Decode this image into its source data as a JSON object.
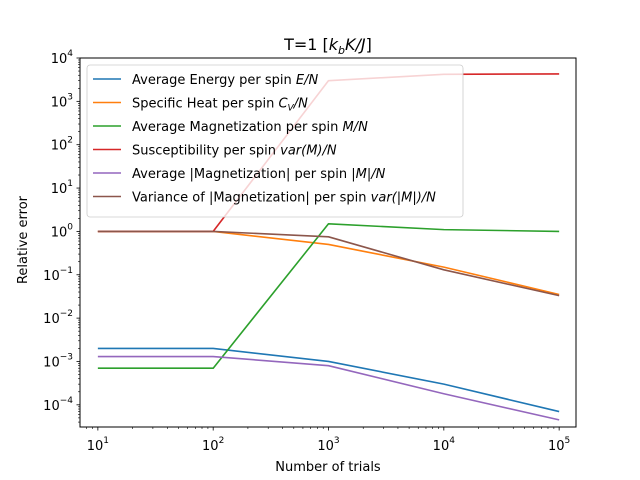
{
  "chart_data": {
    "type": "line",
    "title": "T=1 [k_bK/J]",
    "title_parts": {
      "prefix": "T=1 [",
      "math": "k",
      "math_sub": "b",
      "math2": "K/J",
      "suffix": "]"
    },
    "xlabel": "Number of trials",
    "ylabel": "Relative error",
    "xscale": "log",
    "yscale": "log",
    "xlim": [
      7,
      140000
    ],
    "ylim": [
      3.08e-05,
      10000
    ],
    "x": [
      10,
      100,
      1000,
      10000,
      100000
    ],
    "x_ticks": [
      {
        "value": 10,
        "base": "10",
        "exp": "1"
      },
      {
        "value": 100,
        "base": "10",
        "exp": "2"
      },
      {
        "value": 1000,
        "base": "10",
        "exp": "3"
      },
      {
        "value": 10000,
        "base": "10",
        "exp": "4"
      },
      {
        "value": 100000,
        "base": "10",
        "exp": "5"
      }
    ],
    "y_ticks": [
      {
        "value": 0.0001,
        "base": "10",
        "exp": "−4"
      },
      {
        "value": 0.001,
        "base": "10",
        "exp": "−3"
      },
      {
        "value": 0.01,
        "base": "10",
        "exp": "−2"
      },
      {
        "value": 0.1,
        "base": "10",
        "exp": "−1"
      },
      {
        "value": 1,
        "base": "10",
        "exp": "0"
      },
      {
        "value": 10,
        "base": "10",
        "exp": "1"
      },
      {
        "value": 100,
        "base": "10",
        "exp": "2"
      },
      {
        "value": 1000,
        "base": "10",
        "exp": "3"
      },
      {
        "value": 10000,
        "base": "10",
        "exp": "4"
      }
    ],
    "grid": false,
    "legend_position": "upper-left",
    "series": [
      {
        "name": "Average Energy per spin E/N",
        "legend_text": "Average Energy per spin ",
        "legend_math": "E/N",
        "legend_suffix": "",
        "color": "#1f77b4",
        "values": [
          0.002,
          0.002,
          0.001,
          0.0003,
          7e-05
        ]
      },
      {
        "name": "Specific Heat per spin C_V/N",
        "legend_text": "Specific Heat per spin ",
        "legend_math": "C",
        "legend_math_sub": "V",
        "legend_math2": "/N",
        "legend_suffix": "",
        "color": "#ff7f0e",
        "values": [
          1.0,
          1.0,
          0.5,
          0.15,
          0.035
        ]
      },
      {
        "name": "Average Magnetization per spin M/N",
        "legend_text": "Average Magnetization per spin ",
        "legend_math": "M/N",
        "legend_suffix": "",
        "color": "#2ca02c",
        "values": [
          0.0007,
          0.0007,
          1.5,
          1.1,
          1.0
        ]
      },
      {
        "name": "Susceptibility per spin var(M)/N",
        "legend_text": "Susceptibility per spin ",
        "legend_math": "var(M)/N",
        "legend_suffix": "",
        "color": "#d62728",
        "values": [
          1.0,
          1.0,
          3000,
          4200,
          4300
        ]
      },
      {
        "name": "Average |Magnetization| per spin |M|/N",
        "legend_text": "Average |Magnetization| per spin ",
        "legend_math": "|M|/N",
        "legend_suffix": "",
        "color": "#9467bd",
        "values": [
          0.0013,
          0.0013,
          0.0008,
          0.00018,
          4.5e-05
        ]
      },
      {
        "name": "Variance of |Magnetization| per spin var(|M|)/N",
        "legend_text": "Variance of |Magnetization| per spin ",
        "legend_math": "var(|M|)/N",
        "legend_suffix": "",
        "color": "#8c564b",
        "values": [
          1.0,
          1.0,
          0.75,
          0.13,
          0.033
        ]
      }
    ]
  }
}
